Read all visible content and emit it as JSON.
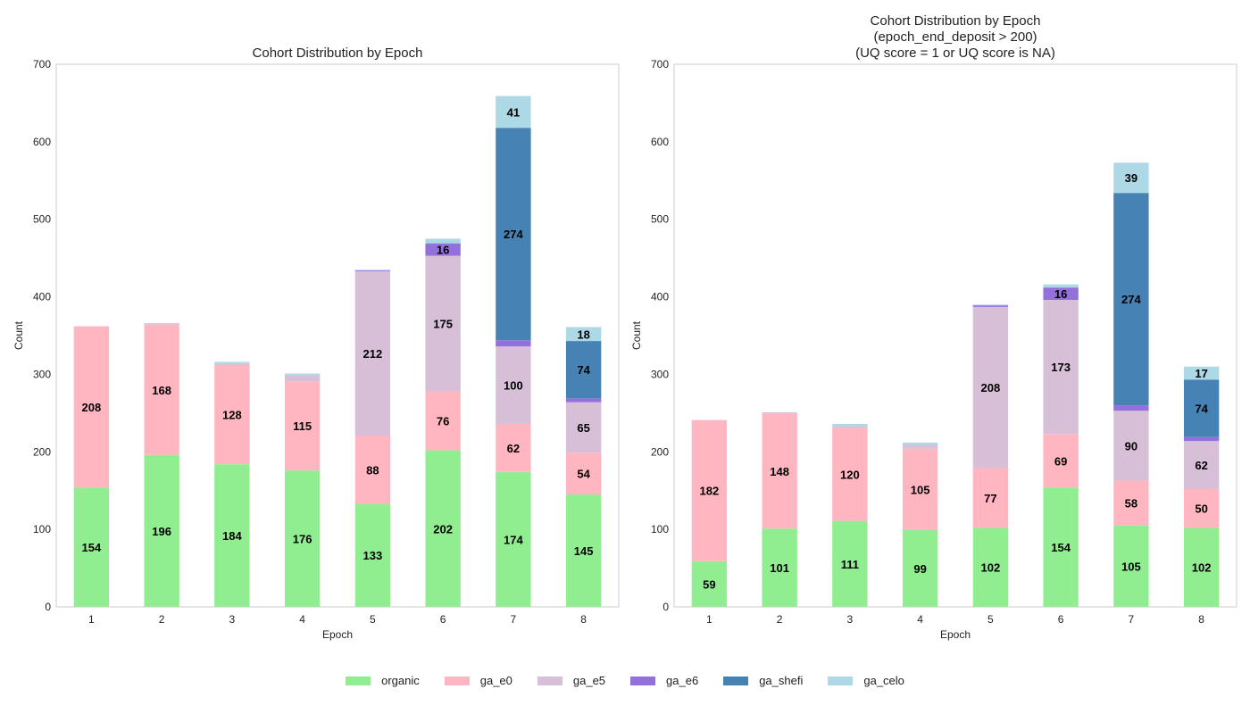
{
  "chart_data": [
    {
      "type": "bar",
      "stacked": true,
      "title": "Cohort Distribution by Epoch",
      "xlabel": "Epoch",
      "ylabel": "Count",
      "ylim": [
        0,
        700
      ],
      "yticks": [
        0,
        100,
        200,
        300,
        400,
        500,
        600,
        700
      ],
      "categories": [
        "1",
        "2",
        "3",
        "4",
        "5",
        "6",
        "7",
        "8"
      ],
      "series": [
        {
          "name": "organic",
          "values": [
            154,
            196,
            184,
            176,
            133,
            202,
            174,
            145
          ]
        },
        {
          "name": "ga_e0",
          "values": [
            208,
            168,
            128,
            115,
            88,
            76,
            62,
            54
          ]
        },
        {
          "name": "ga_e5",
          "values": [
            0,
            2,
            2,
            8,
            212,
            175,
            100,
            65
          ]
        },
        {
          "name": "ga_e6",
          "values": [
            0,
            0,
            0,
            0,
            1,
            16,
            8,
            5
          ]
        },
        {
          "name": "ga_shefi",
          "values": [
            0,
            0,
            0,
            0,
            0,
            0,
            274,
            74
          ]
        },
        {
          "name": "ga_celo",
          "values": [
            0,
            0,
            2,
            2,
            1,
            6,
            41,
            18
          ]
        }
      ]
    },
    {
      "type": "bar",
      "stacked": true,
      "title": "Cohort Distribution by Epoch\n(epoch_end_deposit > 200)\n(UQ score = 1 or UQ score is NA)",
      "xlabel": "Epoch",
      "ylabel": "Count",
      "ylim": [
        0,
        700
      ],
      "yticks": [
        0,
        100,
        200,
        300,
        400,
        500,
        600,
        700
      ],
      "categories": [
        "1",
        "2",
        "3",
        "4",
        "5",
        "6",
        "7",
        "8"
      ],
      "series": [
        {
          "name": "organic",
          "values": [
            59,
            101,
            111,
            99,
            102,
            154,
            105,
            102
          ]
        },
        {
          "name": "ga_e0",
          "values": [
            182,
            148,
            120,
            105,
            77,
            69,
            58,
            50
          ]
        },
        {
          "name": "ga_e5",
          "values": [
            0,
            2,
            2,
            5,
            208,
            173,
            90,
            62
          ]
        },
        {
          "name": "ga_e6",
          "values": [
            0,
            0,
            0,
            0,
            2,
            16,
            7,
            5
          ]
        },
        {
          "name": "ga_shefi",
          "values": [
            0,
            0,
            0,
            0,
            0,
            0,
            274,
            74
          ]
        },
        {
          "name": "ga_celo",
          "values": [
            0,
            0,
            3,
            3,
            1,
            4,
            39,
            17
          ]
        }
      ]
    }
  ],
  "colors": {
    "organic": "#90ee90",
    "ga_e0": "#ffb6c1",
    "ga_e5": "#d8bfd8",
    "ga_e6": "#9370db",
    "ga_shefi": "#4682b4",
    "ga_celo": "#add8e6"
  },
  "legend": [
    "organic",
    "ga_e0",
    "ga_e5",
    "ga_e6",
    "ga_shefi",
    "ga_celo"
  ]
}
